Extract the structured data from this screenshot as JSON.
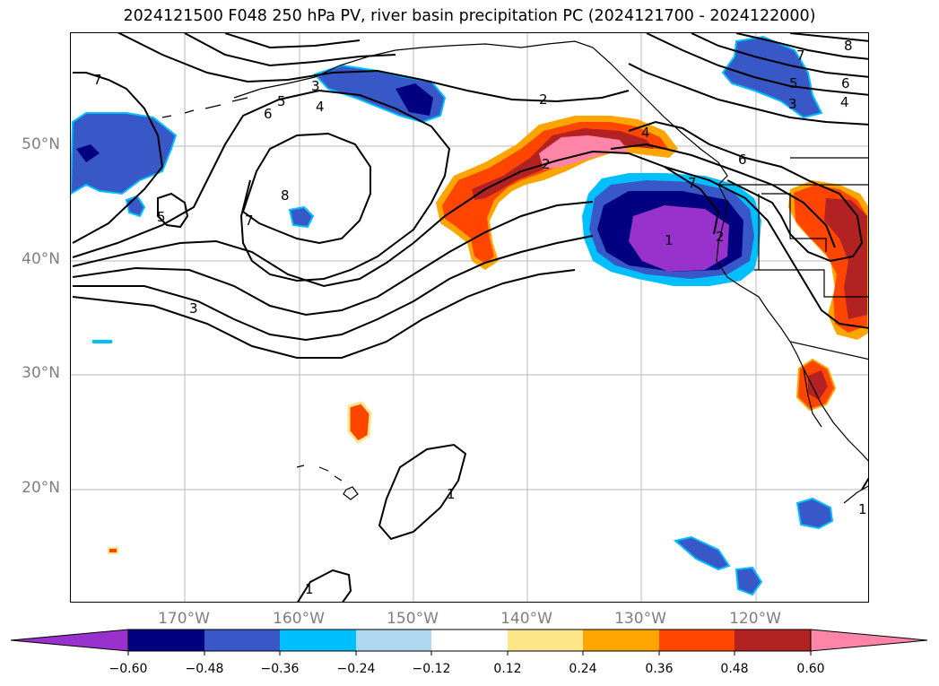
{
  "title": "2024121500 F048 250 hPa PV, river basin precipitation PC (2024121700 - 2024122000)",
  "latitude_labels": [
    "50°N",
    "40°N",
    "30°N",
    "20°N"
  ],
  "longitude_labels": [
    "170°W",
    "160°W",
    "150°W",
    "140°W",
    "130°W",
    "120°W"
  ],
  "contour_labels": [
    "7",
    "5",
    "6",
    "4",
    "3",
    "2",
    "8",
    "7",
    "5",
    "3",
    "1",
    "1",
    "2",
    "4",
    "6",
    "7",
    "1",
    "2",
    "7",
    "8",
    "5",
    "6",
    "4",
    "3",
    "1"
  ],
  "colorbar": {
    "ticks": [
      "−0.60",
      "−0.48",
      "−0.36",
      "−0.24",
      "−0.12",
      "0.12",
      "0.24",
      "0.36",
      "0.48",
      "0.60"
    ],
    "colors": [
      "#9932cc",
      "#000080",
      "#3858c8",
      "#00bfff",
      "#add8f0",
      "#ffffff",
      "#fde68a",
      "#ffa500",
      "#ff4500",
      "#b22222",
      "#ff85a8"
    ]
  },
  "chart_data": {
    "type": "map",
    "variable_contours": "250 hPa PV",
    "variable_fill": "river basin precipitation PC",
    "lat_range": [
      10,
      60
    ],
    "lon_range": [
      -180,
      -110
    ],
    "gridlines": true,
    "colorbar_levels": [
      -0.6,
      -0.48,
      -0.36,
      -0.24,
      -0.12,
      0.12,
      0.24,
      0.36,
      0.48,
      0.6
    ],
    "colorbar_extend": "both"
  }
}
